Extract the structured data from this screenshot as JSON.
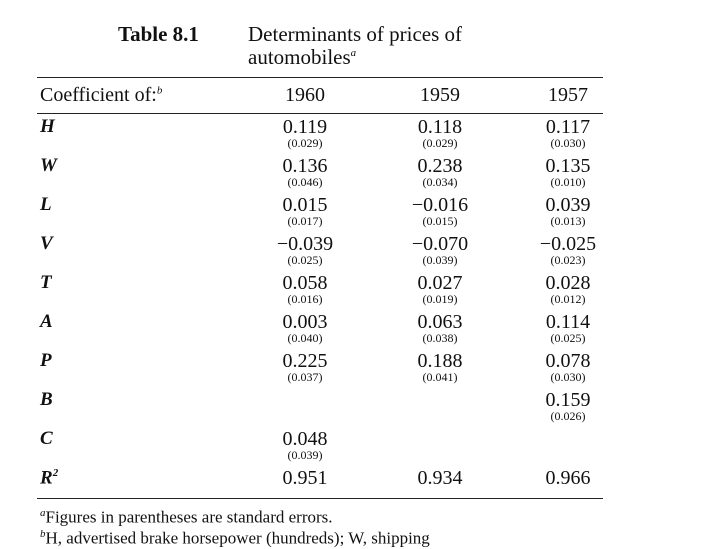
{
  "table_title": {
    "number": "Table 8.1",
    "text_line1": "Determinants of prices of",
    "text_line2": "automobiles",
    "note_mark": "a"
  },
  "header": {
    "label": "Coefficient of:",
    "note_mark": "b",
    "columns": [
      "1960",
      "1959",
      "1957"
    ]
  },
  "rows": [
    {
      "label": "H",
      "cells": [
        {
          "value": "0.119",
          "se": "(0.029)"
        },
        {
          "value": "0.118",
          "se": "(0.029)"
        },
        {
          "value": "0.117",
          "se": "(0.030)"
        }
      ]
    },
    {
      "label": "W",
      "cells": [
        {
          "value": "0.136",
          "se": "(0.046)"
        },
        {
          "value": "0.238",
          "se": "(0.034)"
        },
        {
          "value": "0.135",
          "se": "(0.010)"
        }
      ]
    },
    {
      "label": "L",
      "cells": [
        {
          "value": "0.015",
          "se": "(0.017)"
        },
        {
          "value": "−0.016",
          "se": "(0.015)"
        },
        {
          "value": "0.039",
          "se": "(0.013)"
        }
      ]
    },
    {
      "label": "V",
      "cells": [
        {
          "value": "−0.039",
          "se": "(0.025)"
        },
        {
          "value": "−0.070",
          "se": "(0.039)"
        },
        {
          "value": "−0.025",
          "se": "(0.023)"
        }
      ]
    },
    {
      "label": "T",
      "cells": [
        {
          "value": "0.058",
          "se": "(0.016)"
        },
        {
          "value": "0.027",
          "se": "(0.019)"
        },
        {
          "value": "0.028",
          "se": "(0.012)"
        }
      ]
    },
    {
      "label": "A",
      "cells": [
        {
          "value": "0.003",
          "se": "(0.040)"
        },
        {
          "value": "0.063",
          "se": "(0.038)"
        },
        {
          "value": "0.114",
          "se": "(0.025)"
        }
      ]
    },
    {
      "label": "P",
      "cells": [
        {
          "value": "0.225",
          "se": "(0.037)"
        },
        {
          "value": "0.188",
          "se": "(0.041)"
        },
        {
          "value": "0.078",
          "se": "(0.030)"
        }
      ]
    },
    {
      "label": "B",
      "cells": [
        null,
        null,
        {
          "value": "0.159",
          "se": "(0.026)"
        }
      ]
    },
    {
      "label": "C",
      "cells": [
        {
          "value": "0.048",
          "se": "(0.039)"
        },
        null,
        null
      ]
    },
    {
      "label": "R",
      "sup": "2",
      "cells": [
        {
          "value": "0.951"
        },
        {
          "value": "0.934"
        },
        {
          "value": "0.966"
        }
      ]
    }
  ],
  "footnotes": [
    {
      "mark": "a",
      "text": "Figures in parentheses are standard errors."
    },
    {
      "mark": "b",
      "text": "H, advertised brake horsepower (hundreds); W, shipping"
    }
  ]
}
